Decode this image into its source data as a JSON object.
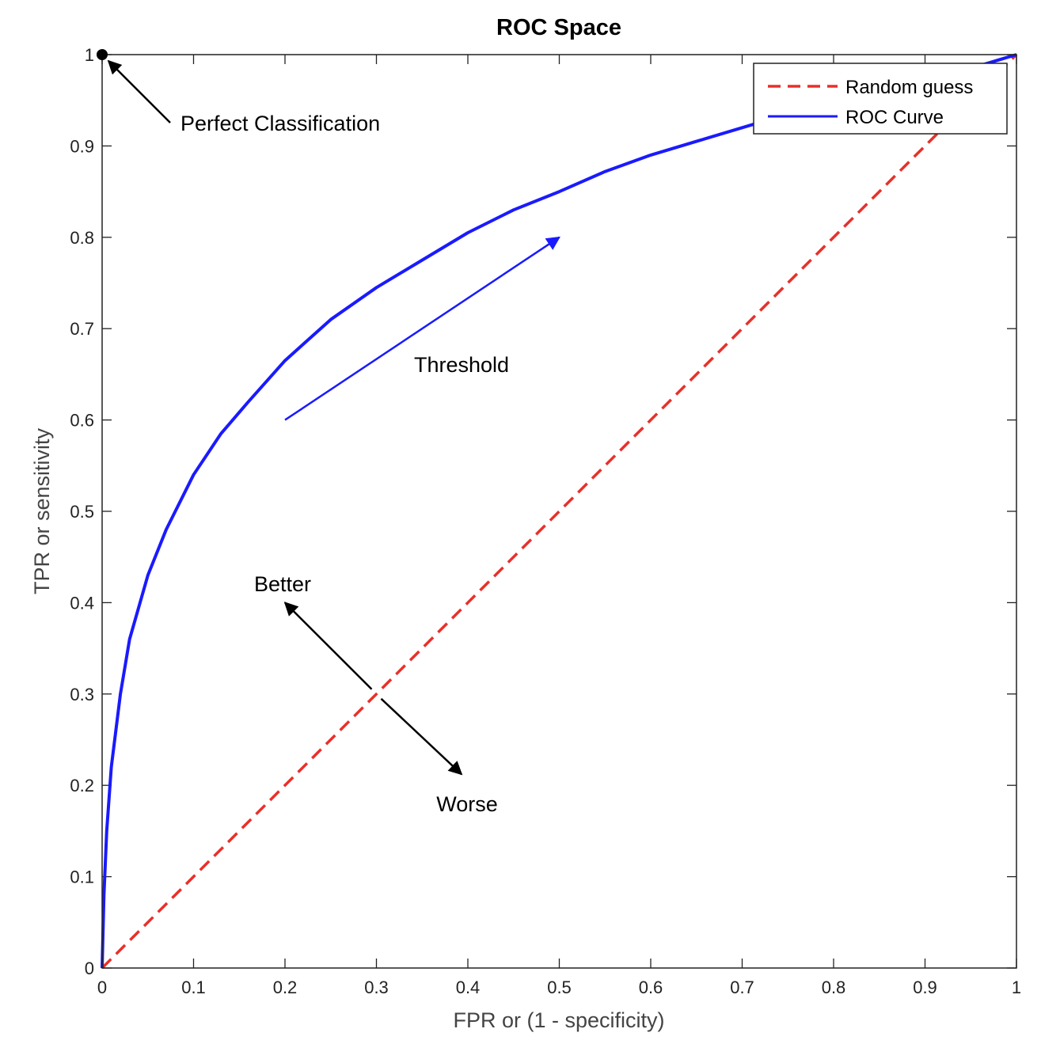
{
  "chart_data": {
    "type": "line",
    "title": "ROC Space",
    "xlabel": "FPR or (1 - specificity)",
    "ylabel": "TPR or sensitivity",
    "xlim": [
      0,
      1
    ],
    "ylim": [
      0,
      1
    ],
    "xticks": [
      "0",
      "0.1",
      "0.2",
      "0.3",
      "0.4",
      "0.5",
      "0.6",
      "0.7",
      "0.8",
      "0.9",
      "1"
    ],
    "yticks": [
      "0",
      "0.1",
      "0.2",
      "0.3",
      "0.4",
      "0.5",
      "0.6",
      "0.7",
      "0.8",
      "0.9",
      "1"
    ],
    "grid": false,
    "legend_position": "top-right",
    "series": [
      {
        "name": "Random guess",
        "color": "#e8302a",
        "style": "dashed",
        "x": [
          0,
          1
        ],
        "y": [
          0,
          1
        ]
      },
      {
        "name": "ROC Curve",
        "color": "#1a1aff",
        "style": "solid",
        "x": [
          0,
          0.002,
          0.005,
          0.01,
          0.02,
          0.03,
          0.05,
          0.07,
          0.1,
          0.13,
          0.16,
          0.2,
          0.25,
          0.3,
          0.35,
          0.4,
          0.45,
          0.5,
          0.55,
          0.6,
          0.65,
          0.7,
          0.75,
          0.8,
          0.85,
          0.9,
          0.95,
          1
        ],
        "y": [
          0,
          0.08,
          0.15,
          0.22,
          0.3,
          0.36,
          0.43,
          0.48,
          0.54,
          0.585,
          0.62,
          0.665,
          0.71,
          0.745,
          0.775,
          0.805,
          0.83,
          0.85,
          0.872,
          0.89,
          0.905,
          0.92,
          0.935,
          0.948,
          0.96,
          0.972,
          0.985,
          1
        ]
      }
    ],
    "annotations": [
      {
        "text": "Perfect Classification",
        "point": [
          0,
          1
        ],
        "text_at": [
          0.085,
          0.93
        ],
        "color": "#000000"
      },
      {
        "text": "Threshold",
        "color": "#1a1aff"
      },
      {
        "text": "Better",
        "color": "#000000"
      },
      {
        "text": "Worse",
        "color": "#000000"
      }
    ],
    "threshold_arrow": {
      "from": [
        0.2,
        0.6
      ],
      "to": [
        0.5,
        0.8
      ]
    },
    "better_worse_arrow": {
      "center": [
        0.3,
        0.3
      ],
      "better_tip": [
        0.2,
        0.4
      ],
      "worse_tip": [
        0.4,
        0.2
      ]
    }
  }
}
